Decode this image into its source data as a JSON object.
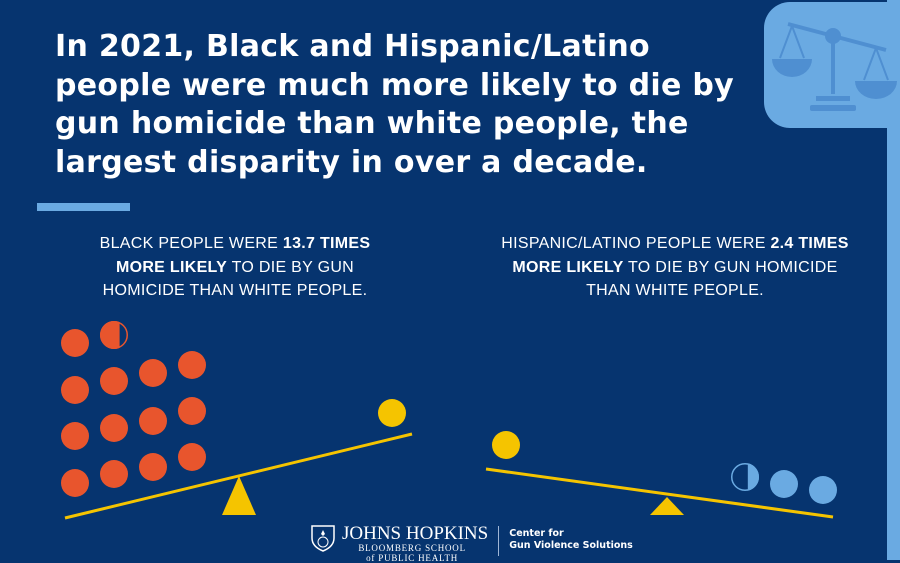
{
  "title": "In 2021, Black and Hispanic/Latino people were much more likely to die by gun homicide than white people, the largest disparity in over a decade.",
  "left_stat": {
    "pre": "BLACK PEOPLE WERE ",
    "bold": "13.7 TIMES MORE LIKELY",
    "post": " TO DIE BY GUN HOMICIDE THAN WHITE PEOPLE.",
    "ratio": 13.7
  },
  "right_stat": {
    "pre": "HISPANIC/LATINO PEOPLE WERE ",
    "bold": "2.4 TIMES MORE LIKELY",
    "post": " TO DIE BY GUN HOMICIDE THAN WHITE PEOPLE.",
    "ratio": 2.4
  },
  "footer": {
    "org_name": "JOHNS HOPKINS",
    "org_sub": "BLOOMBERG SCHOOL",
    "org_sub2": "of PUBLIC HEALTH",
    "center_line1": "Center for",
    "center_line2": "Gun Violence Solutions"
  },
  "icons": {
    "panel_icon": "scales-of-justice-icon"
  },
  "colors": {
    "background": "#06346f",
    "black_dots": "#e8552d",
    "white_dot": "#f5c400",
    "latino_dots": "#6aaae2",
    "seesaw": "#f5c400",
    "accent": "#6aaae2"
  }
}
